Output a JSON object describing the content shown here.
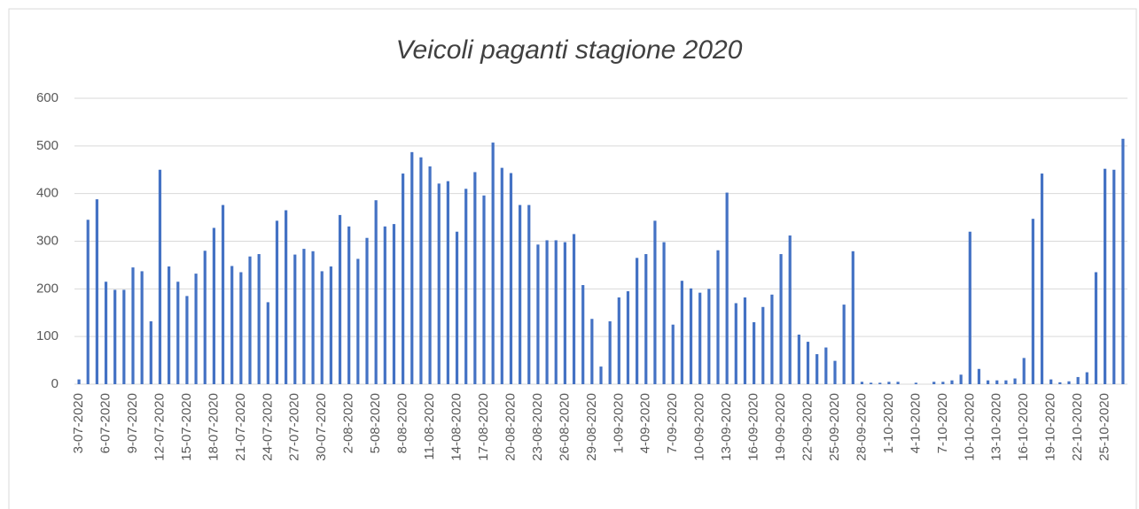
{
  "chart_data": {
    "type": "bar",
    "title": "Veicoli paganti stagione 2020",
    "categories": [
      "3-07-2020",
      null,
      null,
      "6-07-2020",
      null,
      null,
      "9-07-2020",
      null,
      null,
      "12-07-2020",
      null,
      null,
      "15-07-2020",
      null,
      null,
      "18-07-2020",
      null,
      null,
      "21-07-2020",
      null,
      null,
      "24-07-2020",
      null,
      null,
      "27-07-2020",
      null,
      null,
      "30-07-2020",
      null,
      null,
      "2-08-2020",
      null,
      null,
      "5-08-2020",
      null,
      null,
      "8-08-2020",
      null,
      null,
      "11-08-2020",
      null,
      null,
      "14-08-2020",
      null,
      null,
      "17-08-2020",
      null,
      null,
      "20-08-2020",
      null,
      null,
      "23-08-2020",
      null,
      null,
      "26-08-2020",
      null,
      null,
      "29-08-2020",
      null,
      null,
      "1-09-2020",
      null,
      null,
      "4-09-2020",
      null,
      null,
      "7-09-2020",
      null,
      null,
      "10-09-2020",
      null,
      null,
      "13-09-2020",
      null,
      null,
      "16-09-2020",
      null,
      null,
      "19-09-2020",
      null,
      null,
      "22-09-2020",
      null,
      null,
      "25-09-2020",
      null,
      null,
      "28-09-2020",
      null,
      null,
      "1-10-2020",
      null,
      null,
      "4-10-2020",
      null,
      null,
      "7-10-2020",
      null,
      null,
      "10-10-2020",
      null,
      null,
      "13-10-2020",
      null,
      null,
      "16-10-2020",
      null,
      null,
      "19-10-2020",
      null,
      null,
      "22-10-2020",
      null,
      null,
      "25-10-2020",
      null,
      null
    ],
    "values": [
      10,
      345,
      388,
      215,
      198,
      198,
      245,
      237,
      132,
      450,
      247,
      215,
      185,
      232,
      280,
      328,
      376,
      248,
      235,
      268,
      273,
      172,
      343,
      365,
      272,
      284,
      279,
      237,
      247,
      355,
      331,
      263,
      307,
      386,
      331,
      336,
      442,
      487,
      476,
      457,
      421,
      426,
      320,
      410,
      445,
      396,
      507,
      454,
      443,
      376,
      376,
      293,
      302,
      302,
      298,
      315,
      208,
      137,
      37,
      132,
      182,
      195,
      265,
      273,
      343,
      298,
      125,
      217,
      201,
      192,
      200,
      281,
      402,
      170,
      182,
      130,
      162,
      188,
      273,
      312,
      104,
      89,
      63,
      77,
      49,
      167,
      279,
      5,
      3,
      3,
      5,
      5,
      0,
      3,
      0,
      5,
      5,
      8,
      20,
      320,
      32,
      8,
      8,
      8,
      12,
      55,
      347,
      442,
      10,
      4,
      6,
      15,
      25,
      235,
      452,
      450,
      515
    ],
    "color": "#4472c4",
    "ylim": [
      0,
      600
    ],
    "yticks": [
      0,
      100,
      200,
      300,
      400,
      500,
      600
    ],
    "grid": true
  }
}
